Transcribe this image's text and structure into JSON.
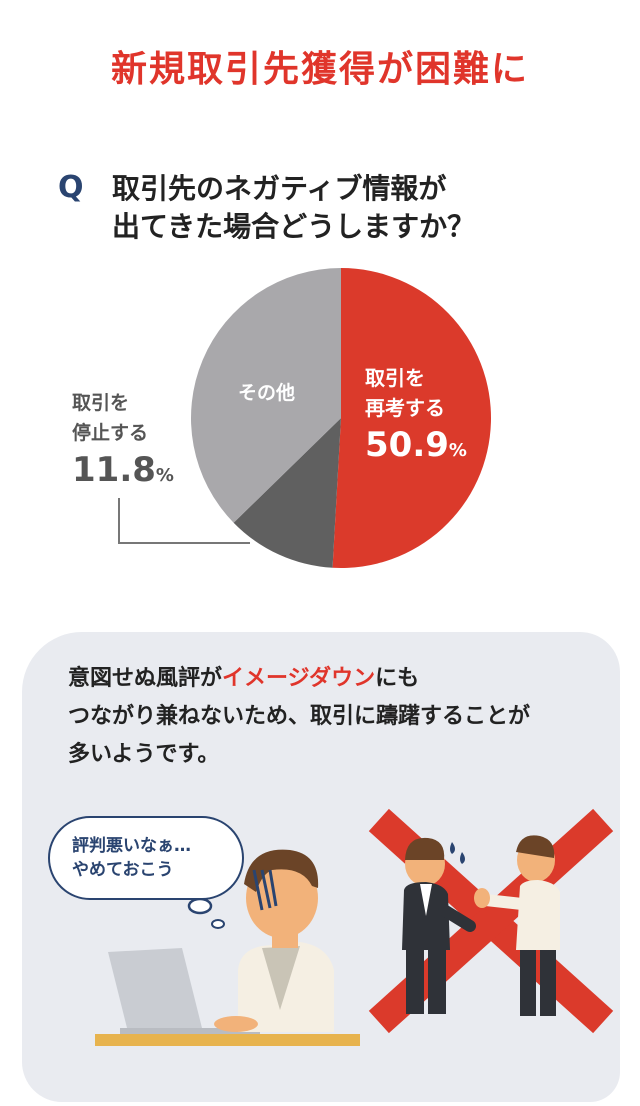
{
  "title": "新規取引先獲得が困難に",
  "question": {
    "mark": "Q",
    "line1": "取引先のネガティブ情報が",
    "line2": "出てきた場合どうしますか？"
  },
  "chart_data": {
    "type": "pie",
    "slices": [
      {
        "label": "取引を再考する",
        "value": 50.9
      },
      {
        "label": "取引を停止する",
        "value": 11.8
      },
      {
        "label": "その他",
        "value": 37.3
      }
    ],
    "title": "",
    "colors": [
      "#db3a2b",
      "#606060",
      "#a9a8ab"
    ]
  },
  "labels": {
    "other": "その他",
    "reconsider_l1": "取引を",
    "reconsider_l2": "再考する",
    "reconsider_pct": "50.9",
    "stop_l1": "取引を",
    "stop_l2": "停止する",
    "stop_pct": "11.8",
    "unit": "%"
  },
  "body": {
    "t1": "意図せぬ風評が",
    "t1_hl": "イメージダウン",
    "t1_end": "にも",
    "t2": "つながり兼ねないため、取引に躊躇することが",
    "t3": "多いようです。"
  },
  "bubble": {
    "line1": "評判悪いなぁ…",
    "line2": "やめておこう"
  },
  "colors": {
    "accent": "#e0352b",
    "navy": "#2a4470"
  }
}
